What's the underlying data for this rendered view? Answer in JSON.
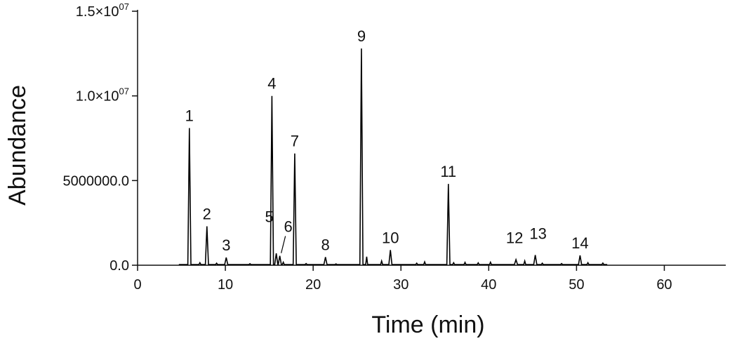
{
  "chart_data": {
    "type": "line",
    "xlabel": "Time (min)",
    "ylabel": "Abundance",
    "xlim": [
      0,
      67
    ],
    "ylim": [
      0,
      15000000
    ],
    "grid": false,
    "x_ticks": [
      {
        "value": 0,
        "label": "0"
      },
      {
        "value": 10,
        "label": "10"
      },
      {
        "value": 20,
        "label": "20"
      },
      {
        "value": 30,
        "label": "30"
      },
      {
        "value": 40,
        "label": "40"
      },
      {
        "value": 50,
        "label": "50"
      },
      {
        "value": 60,
        "label": "60"
      }
    ],
    "y_ticks": [
      {
        "value": 0,
        "label": "0.0"
      },
      {
        "value": 5000000,
        "label": "5000000.0"
      },
      {
        "value": 10000000,
        "label": "1.0×10",
        "sup": "07"
      },
      {
        "value": 15000000,
        "label": "1.5×10",
        "sup": "07"
      }
    ],
    "peaks": [
      {
        "label": "1",
        "time": 5.9,
        "abundance": 8100000
      },
      {
        "label": "2",
        "time": 7.9,
        "abundance": 2300000
      },
      {
        "label": "3",
        "time": 10.1,
        "abundance": 450000
      },
      {
        "label": "4",
        "time": 15.3,
        "abundance": 10000000
      },
      {
        "label": "5",
        "time": 15.8,
        "abundance": 700000
      },
      {
        "label": "6",
        "time": 16.2,
        "abundance": 550000
      },
      {
        "label": "7",
        "time": 17.9,
        "abundance": 6600000
      },
      {
        "label": "8",
        "time": 21.4,
        "abundance": 480000
      },
      {
        "label": "9",
        "time": 25.5,
        "abundance": 12800000
      },
      {
        "label": "10",
        "time": 28.8,
        "abundance": 900000
      },
      {
        "label": "11",
        "time": 35.4,
        "abundance": 4800000
      },
      {
        "label": "12",
        "time": 43.1,
        "abundance": 330000
      },
      {
        "label": "13",
        "time": 45.3,
        "abundance": 600000
      },
      {
        "label": "14",
        "time": 50.4,
        "abundance": 580000
      }
    ],
    "minor_peaks": [
      {
        "time": 7.1,
        "abundance": 150000
      },
      {
        "time": 9.0,
        "abundance": 120000
      },
      {
        "time": 12.8,
        "abundance": 90000
      },
      {
        "time": 16.6,
        "abundance": 180000
      },
      {
        "time": 19.2,
        "abundance": 100000
      },
      {
        "time": 22.6,
        "abundance": 80000
      },
      {
        "time": 26.1,
        "abundance": 500000
      },
      {
        "time": 27.8,
        "abundance": 250000
      },
      {
        "time": 31.8,
        "abundance": 120000
      },
      {
        "time": 32.7,
        "abundance": 200000
      },
      {
        "time": 36.0,
        "abundance": 150000
      },
      {
        "time": 37.3,
        "abundance": 170000
      },
      {
        "time": 38.8,
        "abundance": 140000
      },
      {
        "time": 40.2,
        "abundance": 180000
      },
      {
        "time": 44.1,
        "abundance": 250000
      },
      {
        "time": 46.1,
        "abundance": 120000
      },
      {
        "time": 48.3,
        "abundance": 100000
      },
      {
        "time": 51.3,
        "abundance": 150000
      },
      {
        "time": 53.0,
        "abundance": 130000
      }
    ]
  }
}
